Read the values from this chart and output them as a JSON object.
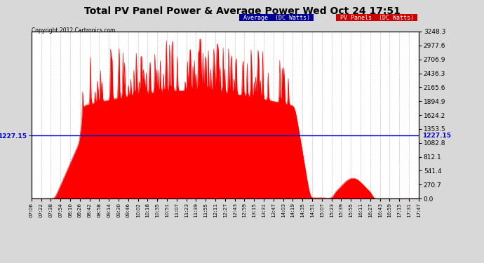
{
  "title": "Total PV Panel Power & Average Power Wed Oct 24 17:51",
  "copyright": "Copyright 2012 Cartronics.com",
  "legend_avg": "Average  (DC Watts)",
  "legend_pv": "PV Panels  (DC Watts)",
  "avg_value": 1227.15,
  "y_max": 3248.3,
  "y_min": 0.0,
  "y_ticks": [
    0.0,
    270.7,
    541.4,
    812.1,
    1082.8,
    1353.5,
    1624.2,
    1894.9,
    2165.6,
    2436.3,
    2706.9,
    2977.6,
    3248.3
  ],
  "background_color": "#d8d8d8",
  "plot_bg_color": "#ffffff",
  "area_color": "#ff0000",
  "avg_line_color": "#0000cc",
  "grid_color": "#aaaaaa",
  "title_color": "#000000",
  "avg_label_color": "#0000cc",
  "x_labels": [
    "07:06",
    "07:22",
    "07:38",
    "07:54",
    "08:10",
    "08:26",
    "08:42",
    "08:58",
    "09:14",
    "09:30",
    "09:46",
    "10:02",
    "10:18",
    "10:35",
    "10:51",
    "11:07",
    "11:23",
    "11:39",
    "11:55",
    "12:11",
    "12:27",
    "12:43",
    "12:59",
    "13:15",
    "13:31",
    "13:47",
    "14:03",
    "14:19",
    "14:35",
    "14:51",
    "15:07",
    "15:23",
    "15:39",
    "15:55",
    "16:11",
    "16:27",
    "16:43",
    "16:59",
    "17:15",
    "17:31",
    "17:47"
  ],
  "num_points": 500,
  "seed": 12
}
